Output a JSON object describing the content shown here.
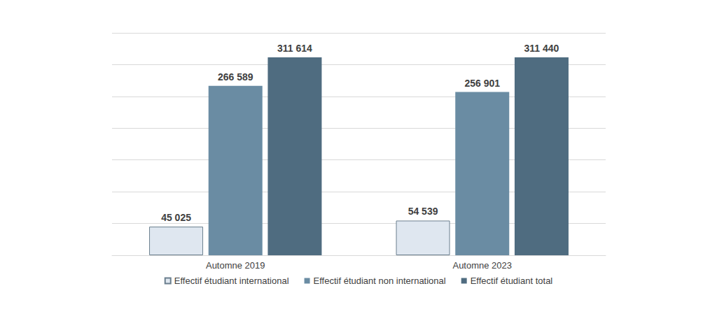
{
  "chart_data": {
    "type": "bar",
    "categories": [
      "Automne 2019",
      "Automne 2023"
    ],
    "series": [
      {
        "name": "Effectif étudiant international",
        "color": "#dfe7f0",
        "values": [
          45025,
          54539
        ],
        "value_labels": [
          "45 025",
          "54 539"
        ]
      },
      {
        "name": "Effectif étudiant non international",
        "color": "#6a8ca3",
        "values": [
          266589,
          256901
        ],
        "value_labels": [
          "266 589",
          "256 901"
        ]
      },
      {
        "name": "Effectif étudiant total",
        "color": "#4f6c80",
        "values": [
          311614,
          311440
        ],
        "value_labels": [
          "311 614",
          "311 440"
        ]
      }
    ],
    "ylim": [
      0,
      350000
    ],
    "yticks": [
      0,
      50000,
      100000,
      150000,
      200000,
      250000,
      300000,
      350000
    ],
    "grid": true,
    "legend": "bottom",
    "data_labels": true,
    "tick_labels": "x"
  }
}
